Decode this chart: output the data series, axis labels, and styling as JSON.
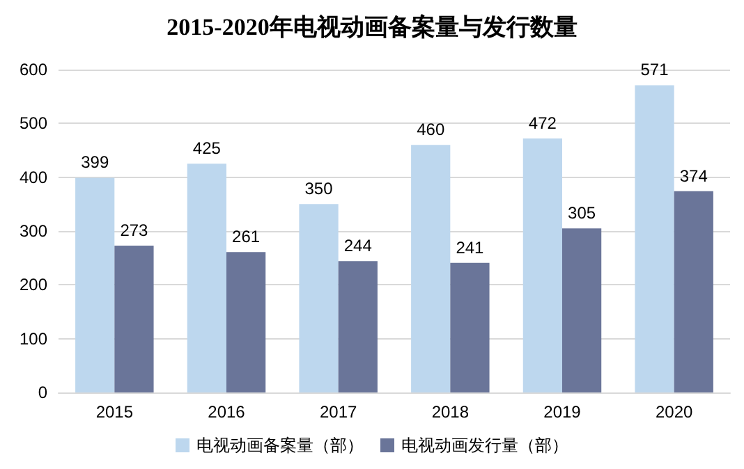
{
  "chart_data": {
    "type": "bar",
    "title": "2015-2020年电视动画备案量与发行数量",
    "categories": [
      "2015",
      "2016",
      "2017",
      "2018",
      "2019",
      "2020"
    ],
    "series": [
      {
        "name": "电视动画备案量（部）",
        "color": "#bdd7ee",
        "values": [
          399,
          425,
          350,
          460,
          472,
          571
        ]
      },
      {
        "name": "电视动画发行量（部）",
        "color": "#6a7599",
        "values": [
          273,
          261,
          244,
          241,
          305,
          374
        ]
      }
    ],
    "ylim": [
      0,
      600
    ],
    "yticks": [
      0,
      100,
      200,
      300,
      400,
      500,
      600
    ],
    "grid": "y",
    "legend": "bottom",
    "data_labels": true
  }
}
